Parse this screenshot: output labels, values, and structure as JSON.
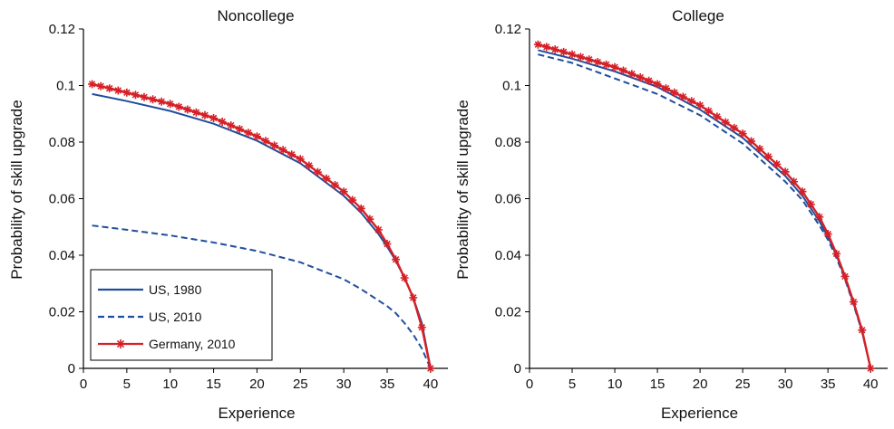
{
  "colors": {
    "us": "#1f4e9c",
    "germany": "#d62027",
    "axis": "#000000"
  },
  "legend": {
    "items": [
      {
        "label": "US, 1980",
        "style": "solid",
        "color": "#1f4e9c"
      },
      {
        "label": "US, 2010",
        "style": "dashed",
        "color": "#1f4e9c"
      },
      {
        "label": "Germany, 2010",
        "style": "solid-star",
        "color": "#d62027"
      }
    ]
  },
  "chart_data": [
    {
      "type": "line",
      "title": "Noncollege",
      "xlabel": "Experience",
      "ylabel": "Probability of skill upgrade",
      "xlim": [
        0,
        42
      ],
      "ylim": [
        0,
        0.12
      ],
      "xticks": [
        "0",
        "5",
        "10",
        "15",
        "20",
        "25",
        "30",
        "35",
        "40"
      ],
      "yticks": [
        "0",
        "0.02",
        "0.04",
        "0.06",
        "0.08",
        "0.1",
        "0.12"
      ],
      "legend_position": "bottom-left",
      "x": [
        1,
        5,
        10,
        15,
        20,
        25,
        30,
        32,
        34,
        35,
        36,
        37,
        38,
        39,
        40
      ],
      "series": [
        {
          "name": "US, 1980",
          "style": "solid",
          "values": [
            0.097,
            0.0945,
            0.091,
            0.0865,
            0.0805,
            0.0725,
            0.061,
            0.055,
            0.0475,
            0.043,
            0.038,
            0.032,
            0.025,
            0.016,
            0.0
          ]
        },
        {
          "name": "US, 2010",
          "style": "dashed",
          "values": [
            0.0505,
            0.049,
            0.047,
            0.0445,
            0.0415,
            0.0375,
            0.0315,
            0.028,
            0.024,
            0.022,
            0.0195,
            0.016,
            0.012,
            0.007,
            0.0
          ]
        },
        {
          "name": "Germany, 2010",
          "style": "solid-star",
          "values": [
            0.1005,
            0.0975,
            0.0935,
            0.0885,
            0.082,
            0.074,
            0.0625,
            0.0565,
            0.049,
            0.044,
            0.0385,
            0.032,
            0.025,
            0.0145,
            0.0
          ]
        }
      ]
    },
    {
      "type": "line",
      "title": "College",
      "xlabel": "Experience",
      "ylabel": "Probability of skill upgrade",
      "xlim": [
        0,
        42
      ],
      "ylim": [
        0,
        0.12
      ],
      "xticks": [
        "0",
        "5",
        "10",
        "15",
        "20",
        "25",
        "30",
        "35",
        "40"
      ],
      "yticks": [
        "0",
        "0.02",
        "0.04",
        "0.06",
        "0.08",
        "0.1",
        "0.12"
      ],
      "legend_position": "none",
      "x": [
        1,
        5,
        10,
        15,
        20,
        25,
        30,
        32,
        34,
        35,
        36,
        37,
        38,
        39,
        40
      ],
      "series": [
        {
          "name": "US, 1980",
          "style": "solid",
          "values": [
            0.1125,
            0.1095,
            0.105,
            0.0995,
            0.0915,
            0.0815,
            0.068,
            0.061,
            0.052,
            0.0465,
            0.04,
            0.032,
            0.023,
            0.013,
            0.0
          ]
        },
        {
          "name": "US, 2010",
          "style": "dashed",
          "values": [
            0.111,
            0.108,
            0.1025,
            0.097,
            0.0895,
            0.0795,
            0.066,
            0.0595,
            0.0505,
            0.0455,
            0.039,
            0.0315,
            0.0225,
            0.013,
            0.0
          ]
        },
        {
          "name": "Germany, 2010",
          "style": "solid-star",
          "values": [
            0.1145,
            0.111,
            0.1065,
            0.1005,
            0.093,
            0.083,
            0.0695,
            0.0625,
            0.0535,
            0.0475,
            0.0405,
            0.0325,
            0.0235,
            0.0135,
            0.0
          ]
        }
      ]
    }
  ]
}
